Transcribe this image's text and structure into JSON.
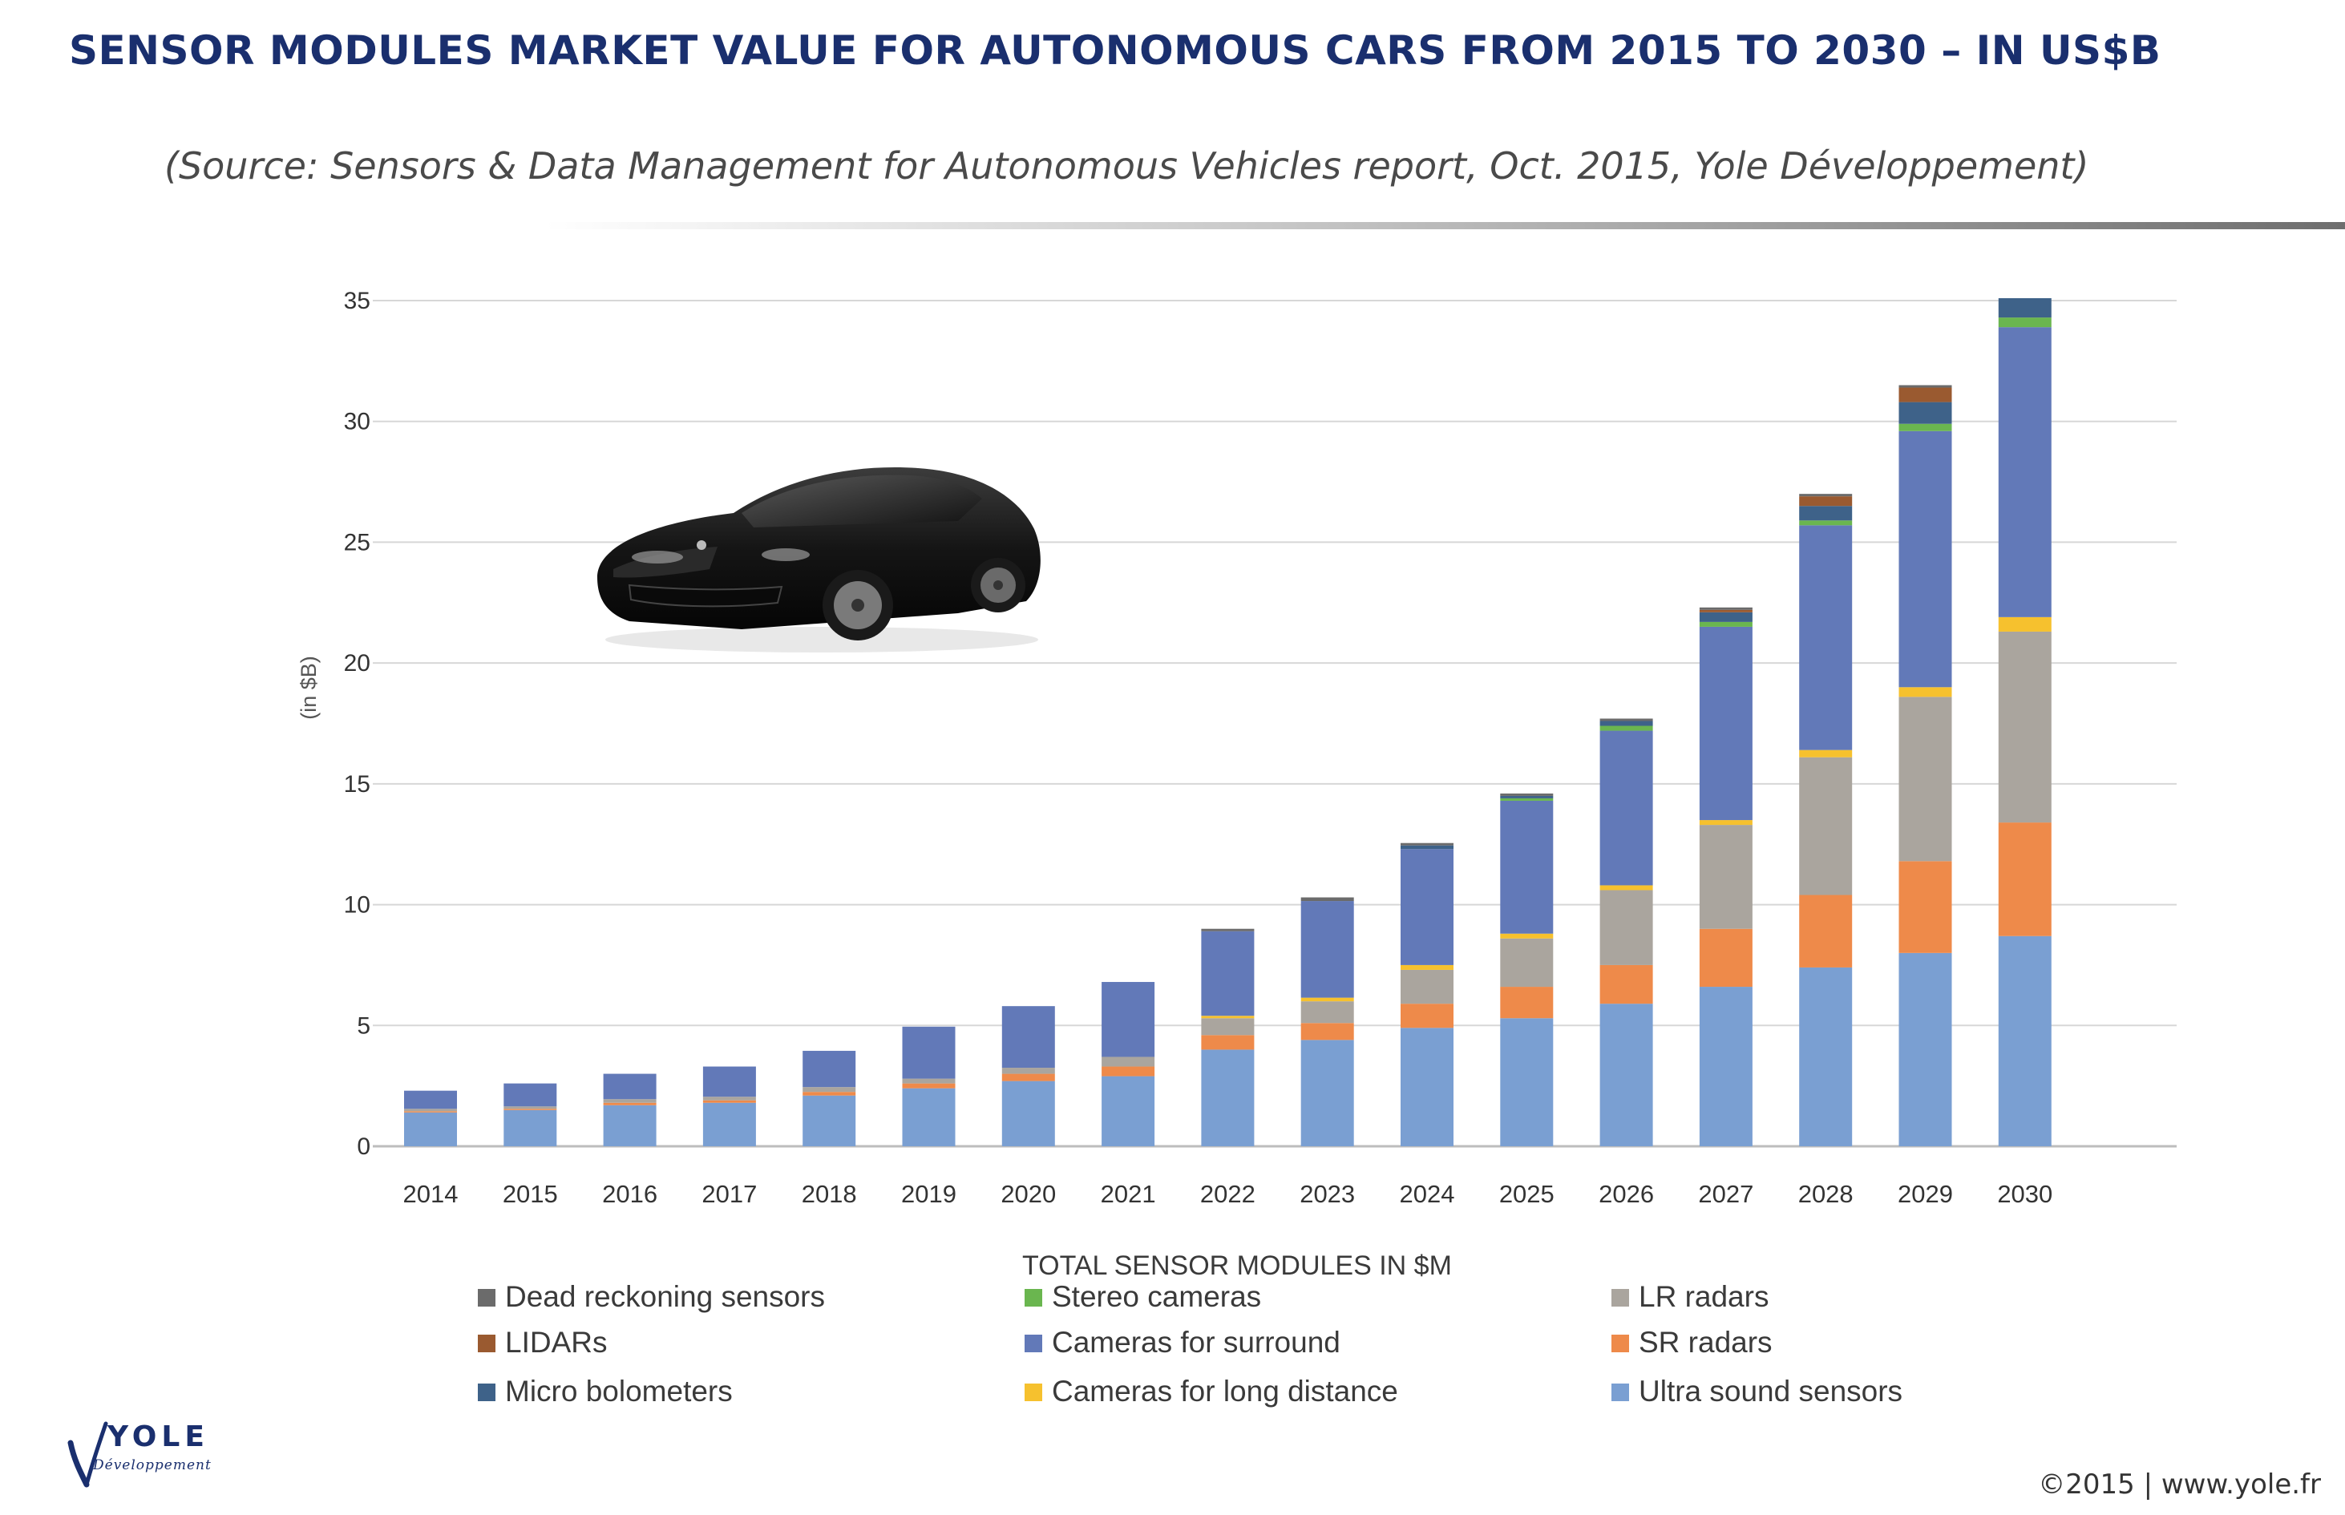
{
  "header": {
    "title": "SENSOR MODULES MARKET VALUE FOR AUTONOMOUS CARS FROM 2015 TO 2030 – IN US$B",
    "subtitle": "(Source: Sensors & Data Management for Autonomous Vehicles report, Oct. 2015, Yole Développement)"
  },
  "logo": {
    "text": "YOLE",
    "subtext": "Développement"
  },
  "footer": {
    "copyright": "©2015 | www.yole.fr"
  },
  "chart_data": {
    "type": "bar",
    "stacked": true,
    "title": "",
    "xlabel": "",
    "ylabel": "(in $B)",
    "ylim": [
      0,
      35
    ],
    "yticks": [
      0,
      5,
      10,
      15,
      20,
      25,
      30,
      35
    ],
    "grid": true,
    "legend_title": "TOTAL SENSOR MODULES IN $M",
    "legend_position": "bottom",
    "categories": [
      "2014",
      "2015",
      "2016",
      "2017",
      "2018",
      "2019",
      "2020",
      "2021",
      "2022",
      "2023",
      "2024",
      "2025",
      "2026",
      "2027",
      "2028",
      "2029",
      "2030"
    ],
    "series": [
      {
        "name": "Ultra sound sensors",
        "color": "#7a9fd2",
        "values": [
          1.4,
          1.5,
          1.7,
          1.8,
          2.1,
          2.4,
          2.7,
          2.9,
          4.0,
          4.4,
          4.9,
          5.3,
          5.9,
          6.6,
          7.4,
          8.0,
          8.7
        ]
      },
      {
        "name": "SR radars",
        "color": "#ee8a4a",
        "values": [
          0.05,
          0.05,
          0.1,
          0.1,
          0.15,
          0.2,
          0.3,
          0.4,
          0.6,
          0.7,
          1.0,
          1.3,
          1.6,
          2.4,
          3.0,
          3.8,
          4.7
        ]
      },
      {
        "name": "LR radars",
        "color": "#aaa59e",
        "values": [
          0.1,
          0.1,
          0.15,
          0.15,
          0.2,
          0.2,
          0.25,
          0.4,
          0.7,
          0.9,
          1.4,
          2.0,
          3.1,
          4.3,
          5.7,
          6.8,
          7.9
        ]
      },
      {
        "name": "Cameras for long distance",
        "color": "#f6c12e",
        "values": [
          0,
          0,
          0,
          0,
          0,
          0,
          0,
          0,
          0.1,
          0.15,
          0.2,
          0.2,
          0.2,
          0.2,
          0.3,
          0.4,
          0.6
        ]
      },
      {
        "name": "Cameras for surround",
        "color": "#6279b8",
        "values": [
          0.75,
          0.95,
          1.05,
          1.25,
          1.5,
          2.15,
          2.55,
          3.1,
          3.5,
          4.0,
          4.8,
          5.5,
          6.4,
          8.0,
          9.3,
          10.6,
          12.0
        ]
      },
      {
        "name": "Stereo cameras",
        "color": "#6ab64f",
        "values": [
          0,
          0,
          0,
          0,
          0,
          0,
          0,
          0,
          0,
          0,
          0,
          0.1,
          0.2,
          0.2,
          0.2,
          0.3,
          0.4
        ]
      },
      {
        "name": "Micro bolometers",
        "color": "#3e6289",
        "values": [
          0,
          0,
          0,
          0,
          0,
          0,
          0,
          0,
          0,
          0,
          0.15,
          0.1,
          0.2,
          0.4,
          0.6,
          0.9,
          0.8
        ]
      },
      {
        "name": "LIDARs",
        "color": "#9a5a30",
        "values": [
          0,
          0,
          0,
          0,
          0,
          0,
          0,
          0,
          0,
          0,
          0,
          0,
          0,
          0.1,
          0.4,
          0.6,
          0
        ]
      },
      {
        "name": "Dead reckoning sensors",
        "color": "#6b6b6b",
        "values": [
          0,
          0,
          0,
          0,
          0,
          0,
          0,
          0,
          0.1,
          0.15,
          0.1,
          0.1,
          0.1,
          0.1,
          0.1,
          0.1,
          0
        ]
      }
    ],
    "legend_order": [
      "Dead reckoning sensors",
      "LIDARs",
      "Micro bolometers",
      "Stereo cameras",
      "Cameras for surround",
      "Cameras for long distance",
      "LR radars",
      "SR radars",
      "Ultra sound sensors"
    ]
  }
}
